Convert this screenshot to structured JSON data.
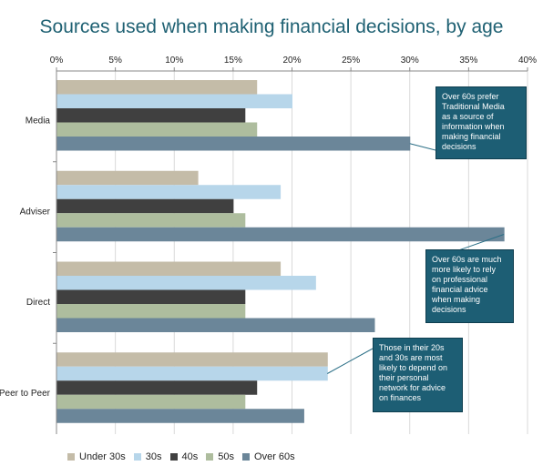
{
  "chart_data": {
    "type": "bar",
    "orientation": "horizontal",
    "title": "Sources used when making financial decisions, by age",
    "categories": [
      "Media",
      "Adviser",
      "Direct",
      "Peer to Peer"
    ],
    "series": [
      {
        "name": "Under 30s",
        "color": "#c4bca8",
        "values": [
          17,
          12,
          19,
          23
        ]
      },
      {
        "name": "30s",
        "color": "#b7d6ea",
        "values": [
          20,
          19,
          22,
          23
        ]
      },
      {
        "name": "40s",
        "color": "#404040",
        "values": [
          16,
          15,
          16,
          17
        ]
      },
      {
        "name": "50s",
        "color": "#aebd9e",
        "values": [
          17,
          16,
          16,
          16
        ]
      },
      {
        "name": "Over 60s",
        "color": "#6b8699",
        "values": [
          30,
          38,
          27,
          21
        ]
      }
    ],
    "xlim": [
      0,
      40
    ],
    "ticks": [
      "0%",
      "5%",
      "10%",
      "15%",
      "20%",
      "25%",
      "30%",
      "35%",
      "40%"
    ],
    "tick_values": [
      0,
      5,
      10,
      15,
      20,
      25,
      30,
      35,
      40
    ],
    "legend_position": "bottom",
    "annotations": [
      {
        "lines": [
          "Over 60s prefer",
          "Traditional Media",
          "as a source of",
          "information when",
          "making  financial",
          "decisions"
        ]
      },
      {
        "lines": [
          "Over 60s are much",
          "more likely to rely",
          "on professional",
          "financial advice",
          "when making",
          "decisions"
        ]
      },
      {
        "lines": [
          "Those in their 20s",
          "and 30s are most",
          "likely to depend on",
          "their personal",
          "network for advice",
          "on finances"
        ]
      }
    ]
  }
}
